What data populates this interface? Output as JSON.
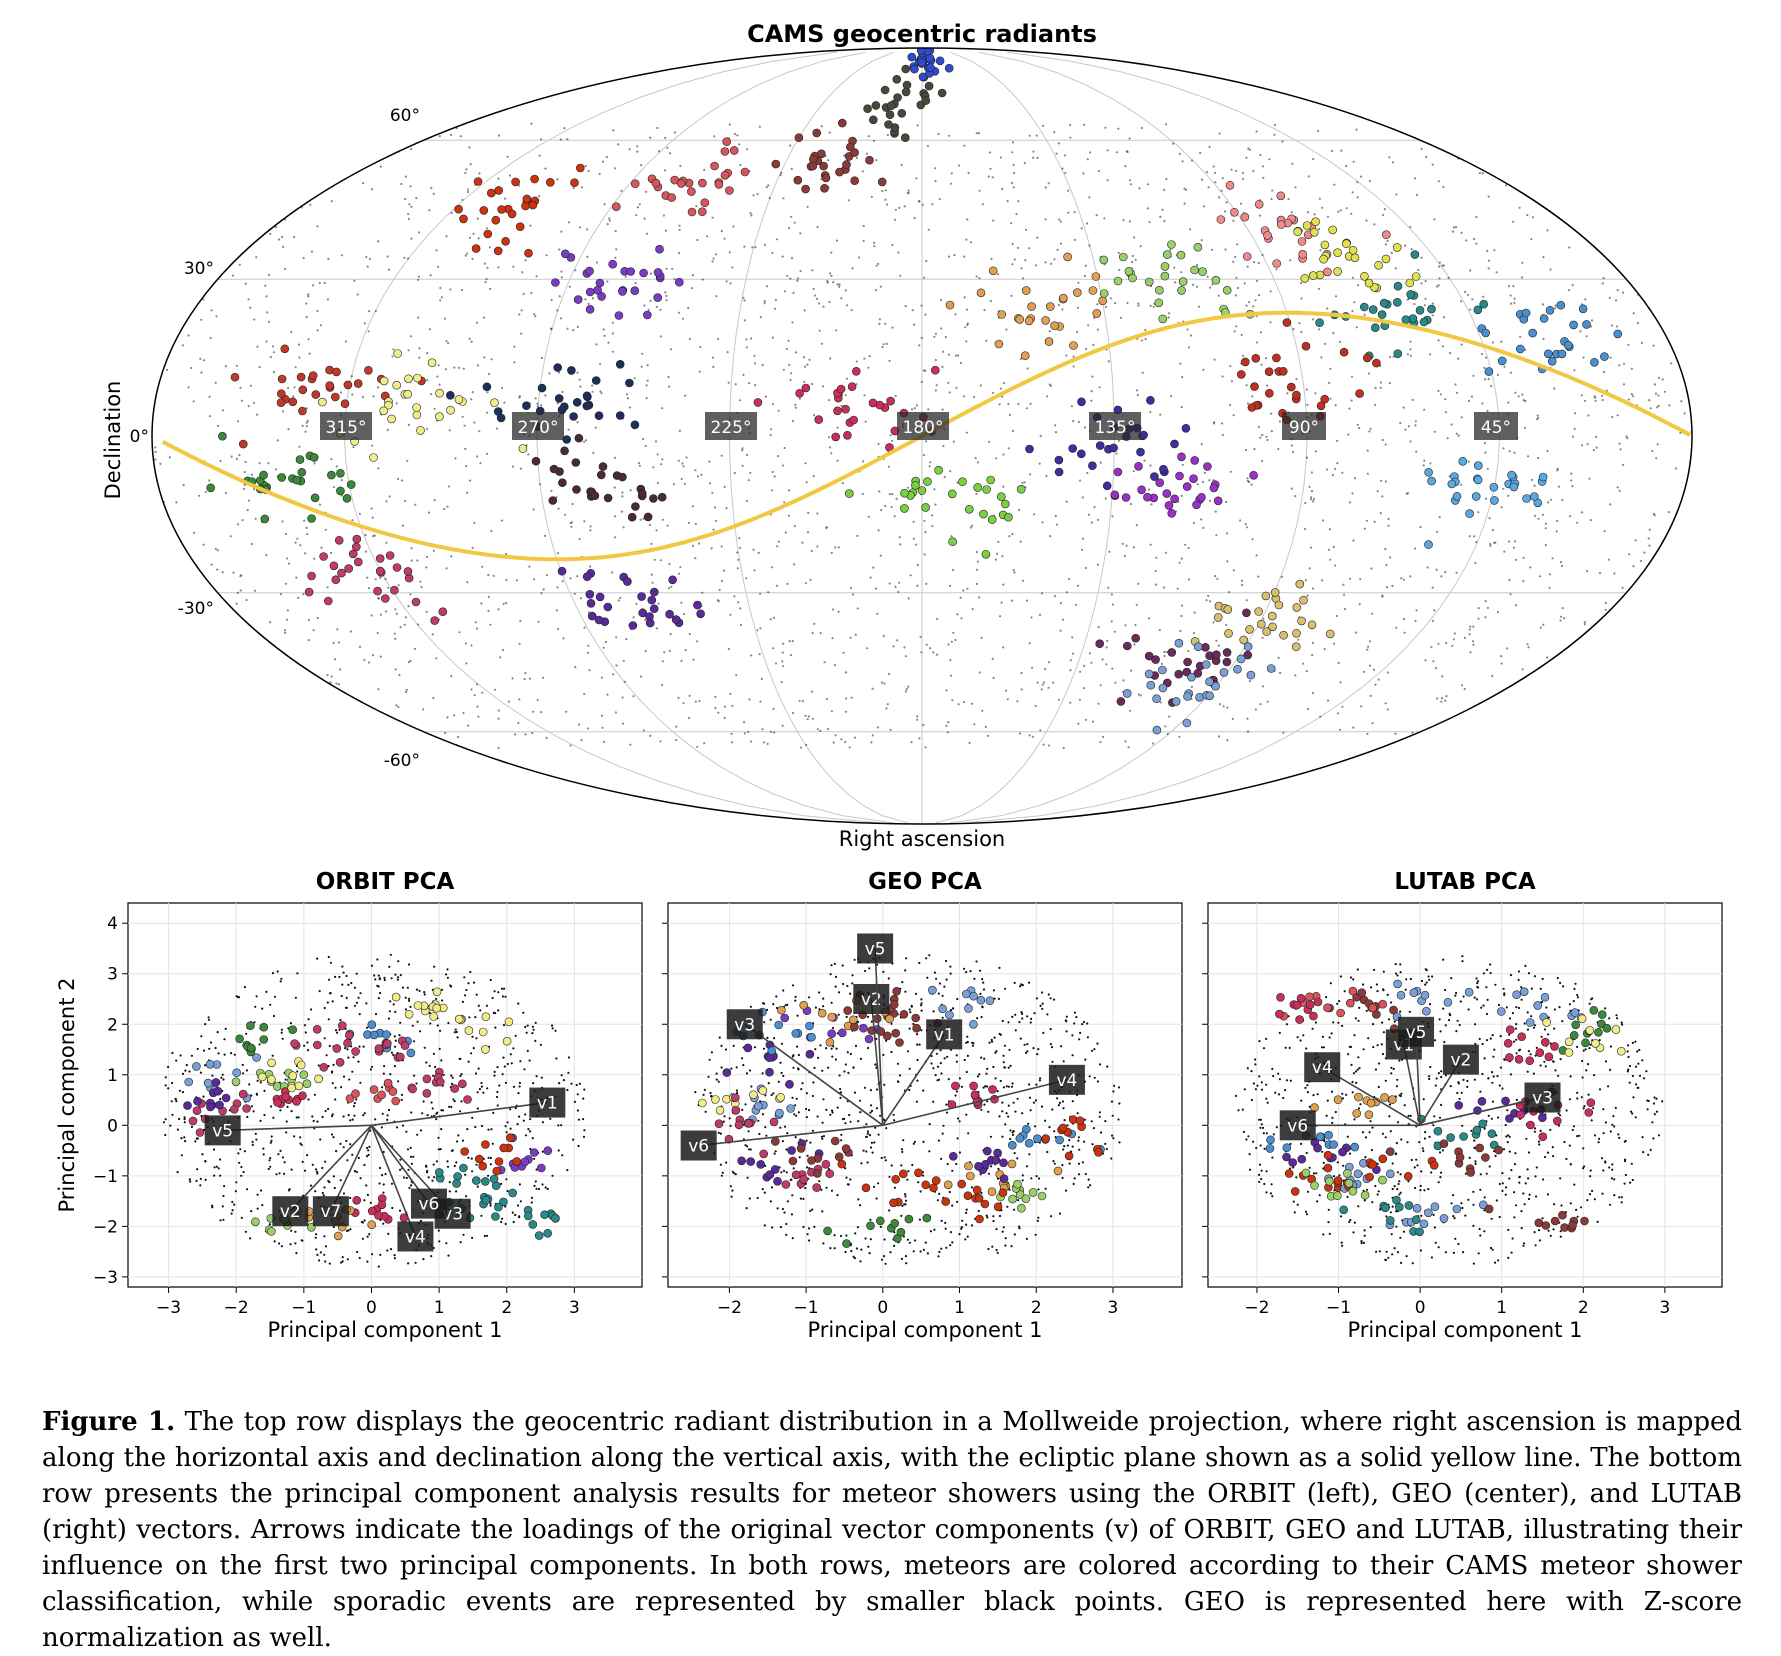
{
  "figure": {
    "sky": {
      "title": "CAMS geocentric radiants",
      "xlabel": "Right ascension",
      "ylabel": "Declination",
      "dec_ticks": [
        "60°",
        "30°",
        "0°",
        "-30°",
        "-60°"
      ],
      "ra_ticks": [
        "315°",
        "270°",
        "225°",
        "180°",
        "135°",
        "90°",
        "45°"
      ],
      "ecliptic_color": "#f2c744"
    },
    "pca_panels": [
      {
        "title": "ORBIT PCA",
        "xlabel": "Principal component 1",
        "ylabel": "Principal component 2"
      },
      {
        "title": "GEO PCA",
        "xlabel": "Principal component 1",
        "ylabel": ""
      },
      {
        "title": "LUTAB PCA",
        "xlabel": "Principal component 1",
        "ylabel": ""
      }
    ]
  },
  "chart_data": [
    {
      "type": "scatter",
      "title": "CAMS geocentric radiants",
      "xlabel": "Right ascension",
      "ylabel": "Declination",
      "projection": "mollweide",
      "grid": true,
      "x_tick_labels": [
        "315°",
        "270°",
        "225°",
        "180°",
        "135°",
        "90°",
        "45°"
      ],
      "y_tick_labels": [
        "60°",
        "30°",
        "0°",
        "-30°",
        "-60°"
      ],
      "ecliptic_line": {
        "color": "#f2c744"
      },
      "clusters": [
        {
          "ra": 300,
          "dec": 45,
          "color": "#cc3311"
        },
        {
          "ra": 248,
          "dec": 50,
          "color": "#d9555c"
        },
        {
          "ra": 210,
          "dec": 55,
          "color": "#8b3a3a"
        },
        {
          "ra": 190,
          "dec": 70,
          "color": "#454a3a"
        },
        {
          "ra": 175,
          "dec": 82,
          "color": "#2f4bd0"
        },
        {
          "ra": 260,
          "dec": 30,
          "color": "#7a3cc4"
        },
        {
          "ra": 320,
          "dec": 10,
          "color": "#c0392b"
        },
        {
          "ra": 300,
          "dec": 5,
          "color": "#f0ec8a"
        },
        {
          "ra": 265,
          "dec": 8,
          "color": "#1d2f5a"
        },
        {
          "ra": 255,
          "dec": -10,
          "color": "#4a2a3a"
        },
        {
          "ra": 330,
          "dec": -10,
          "color": "#3a8a3a"
        },
        {
          "ra": 320,
          "dec": -25,
          "color": "#c03a6a"
        },
        {
          "ra": 255,
          "dec": -33,
          "color": "#5a2a9a"
        },
        {
          "ra": 150,
          "dec": 25,
          "color": "#e0a050"
        },
        {
          "ra": 115,
          "dec": 30,
          "color": "#9ad06a"
        },
        {
          "ra": 80,
          "dec": 40,
          "color": "#f08a8a"
        },
        {
          "ra": 60,
          "dec": 25,
          "color": "#2a8a8a"
        },
        {
          "ra": 30,
          "dec": 18,
          "color": "#4a90d0"
        },
        {
          "ra": 90,
          "dec": 10,
          "color": "#c03020"
        },
        {
          "ra": 135,
          "dec": 0,
          "color": "#3a30a0"
        },
        {
          "ra": 120,
          "dec": -10,
          "color": "#9a30c8"
        },
        {
          "ra": 45,
          "dec": -10,
          "color": "#5aa8e0"
        },
        {
          "ra": 175,
          "dec": -12,
          "color": "#7ad040"
        },
        {
          "ra": 195,
          "dec": 5,
          "color": "#c8305a"
        },
        {
          "ra": 105,
          "dec": -45,
          "color": "#6a2a5a"
        },
        {
          "ra": 90,
          "dec": -35,
          "color": "#d8c070"
        },
        {
          "ra": 95,
          "dec": -48,
          "color": "#7aa0d8"
        },
        {
          "ra": 70,
          "dec": 35,
          "color": "#e0e050"
        }
      ]
    },
    {
      "type": "scatter",
      "title": "ORBIT PCA",
      "xlabel": "Principal component 1",
      "ylabel": "Principal component 2",
      "xlim": [
        -3.6,
        4.0
      ],
      "ylim": [
        -3.2,
        4.4
      ],
      "x_ticks": [
        -3,
        -2,
        -1,
        0,
        1,
        2,
        3
      ],
      "y_ticks": [
        -3,
        -2,
        -1,
        0,
        1,
        2,
        3,
        4
      ],
      "grid": true,
      "loadings": [
        {
          "name": "v1",
          "x": 2.6,
          "y": 0.45
        },
        {
          "name": "v2",
          "x": -1.2,
          "y": -1.7
        },
        {
          "name": "v3",
          "x": 1.2,
          "y": -1.75
        },
        {
          "name": "v4",
          "x": 0.65,
          "y": -2.2
        },
        {
          "name": "v5",
          "x": -2.2,
          "y": -0.1
        },
        {
          "name": "v6",
          "x": 0.85,
          "y": -1.55
        },
        {
          "name": "v7",
          "x": -0.6,
          "y": -1.7
        }
      ]
    },
    {
      "type": "scatter",
      "title": "GEO PCA",
      "xlabel": "Principal component 1",
      "ylabel": "",
      "xlim": [
        -2.8,
        3.9
      ],
      "ylim": [
        -3.2,
        4.4
      ],
      "x_ticks": [
        -2,
        -1,
        0,
        1,
        2,
        3
      ],
      "y_ticks": [
        -3,
        -2,
        -1,
        0,
        1,
        2,
        3,
        4
      ],
      "grid": true,
      "loadings": [
        {
          "name": "v1",
          "x": 0.8,
          "y": 1.8
        },
        {
          "name": "v2",
          "x": -0.15,
          "y": 2.5
        },
        {
          "name": "v3",
          "x": -1.8,
          "y": 2.0
        },
        {
          "name": "v4",
          "x": 2.4,
          "y": 0.9
        },
        {
          "name": "v5",
          "x": -0.1,
          "y": 3.5
        },
        {
          "name": "v6",
          "x": -2.4,
          "y": -0.4
        }
      ]
    },
    {
      "type": "scatter",
      "title": "LUTAB PCA",
      "xlabel": "Principal component 1",
      "ylabel": "",
      "xlim": [
        -2.6,
        3.7
      ],
      "ylim": [
        -3.2,
        4.4
      ],
      "x_ticks": [
        -2,
        -1,
        0,
        1,
        2,
        3
      ],
      "y_ticks": [
        -3,
        -2,
        -1,
        0,
        1,
        2,
        3,
        4
      ],
      "grid": true,
      "loadings": [
        {
          "name": "v1",
          "x": -0.2,
          "y": 1.6
        },
        {
          "name": "v3",
          "x": 1.5,
          "y": 0.55
        },
        {
          "name": "v4",
          "x": -1.2,
          "y": 1.15
        },
        {
          "name": "v5",
          "x": -0.05,
          "y": 1.85
        },
        {
          "name": "v2",
          "x": 0.5,
          "y": 1.3
        },
        {
          "name": "v6",
          "x": -1.5,
          "y": 0.0
        }
      ]
    }
  ],
  "caption": {
    "label": "Figure 1.",
    "text": "The top row displays the geocentric radiant distribution in a Mollweide projection, where right ascension is mapped along the horizontal axis and declination along the vertical axis, with the ecliptic plane shown as a solid yellow line. The bottom row presents the principal component analysis results for meteor showers using the ORBIT (left), GEO (center), and LUTAB (right) vectors. Arrows indicate the loadings of the original vector components (v) of ORBIT, GEO and LUTAB, illustrating their influence on the first two principal components. In both rows, meteors are colored according to their CAMS meteor shower classification, while sporadic events are represented by smaller black points. GEO is represented here with Z-score normalization as well."
  }
}
